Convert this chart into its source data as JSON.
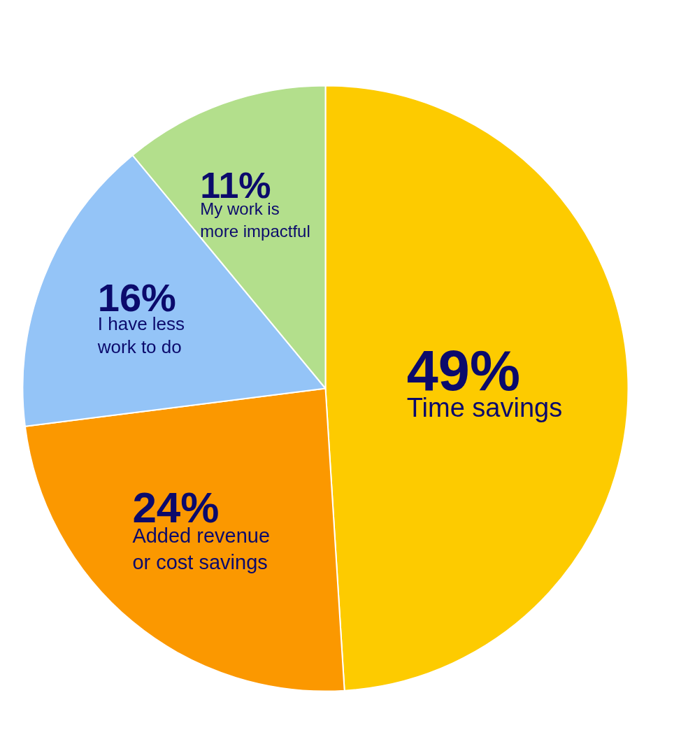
{
  "chart_data": {
    "type": "pie",
    "categories": [
      "Time savings",
      "Added revenue\nor cost savings",
      "I have less\nwork to do",
      "My work is\nmore impactful"
    ],
    "values": [
      49,
      24,
      16,
      11
    ],
    "colors": [
      "#fdcb00",
      "#fb9800",
      "#94c4f7",
      "#b3df8c"
    ],
    "value_labels": [
      "49%",
      "24%",
      "16%",
      "11%"
    ]
  }
}
